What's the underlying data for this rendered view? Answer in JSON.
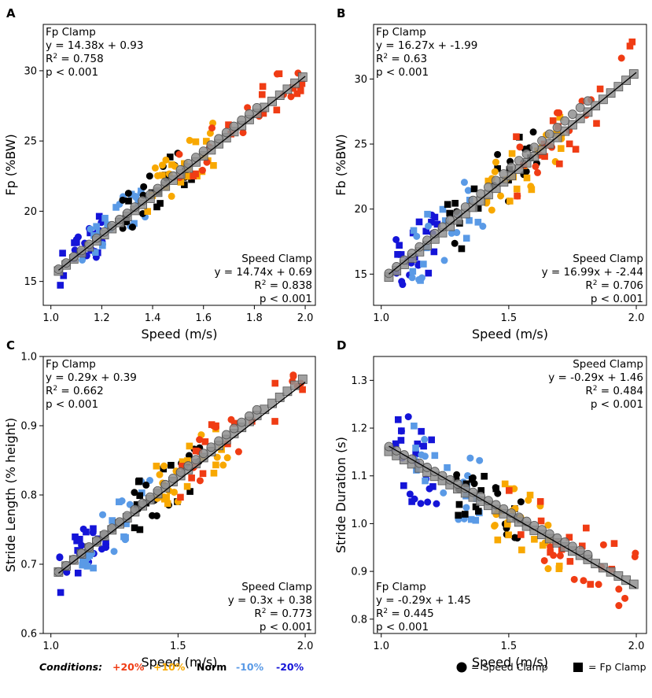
{
  "colors": {
    "+20%": "#f03c14",
    "+10%": "#f8a800",
    "Norm": "#000000",
    "-10%": "#5a9ae6",
    "-20%": "#1414d8",
    "fit_marker": "#909090"
  },
  "legend": {
    "conditions_title": "Conditions:",
    "conditions": [
      {
        "label": "+20%",
        "color_key": "+20%"
      },
      {
        "label": "+10%",
        "color_key": "+10%"
      },
      {
        "label": "Norm",
        "color_key": "Norm"
      },
      {
        "label": "-10%",
        "color_key": "-10%"
      },
      {
        "label": "-20%",
        "color_key": "-20%"
      }
    ],
    "speed_clamp_label": "= Speed Clamp",
    "fp_clamp_label": "= Fp Clamp"
  },
  "chart_data": [
    {
      "panel": "A",
      "type": "scatter",
      "xlabel": "Speed (m/s)",
      "ylabel": "Fp (%BW)",
      "xlim": [
        0.97,
        2.04
      ],
      "ylim": [
        13.3,
        33.3
      ],
      "xticks": [
        1.0,
        1.2,
        1.4,
        1.6,
        1.8,
        2.0
      ],
      "xtick_labels": [
        "1.0",
        "1.2",
        "1.4",
        "1.6",
        "1.8",
        "2.0"
      ],
      "yticks": [
        15,
        20,
        25,
        30
      ],
      "ytick_labels": [
        "15",
        "20",
        "25",
        "30"
      ],
      "fit_line": {
        "x": [
          1.03,
          2.0
        ],
        "y": [
          15.8,
          29.6
        ]
      },
      "gray_circles": {
        "x_start": 1.03,
        "x_end": 1.82,
        "step": 0.03,
        "slope": 14.74,
        "intercept": 0.69
      },
      "gray_squares": {
        "x_start": 1.03,
        "x_end": 2.0,
        "step": 0.03,
        "slope": 14.38,
        "intercept": 0.93
      },
      "annotation_fp": {
        "lines": [
          "Fp Clamp",
          "y = 14.38x + 0.93",
          "R",
          "p < 0.001"
        ],
        "r2": "2",
        "r2_value": " = 0.758",
        "position": "top-left"
      },
      "annotation_speed": {
        "lines": [
          "Speed Clamp",
          "y = 14.74x + 0.69",
          "R",
          "p < 0.001"
        ],
        "r2": "2",
        "r2_value": " = 0.838",
        "position": "bottom-right"
      },
      "scatter_groups": [
        {
          "cond": "-20%",
          "x_range": [
            1.03,
            1.22
          ],
          "slope": 14.6,
          "intercept": 0.9,
          "spread": 1.5,
          "n": 24,
          "seed": 11
        },
        {
          "cond": "-10%",
          "x_range": [
            1.12,
            1.38
          ],
          "slope": 14.6,
          "intercept": 0.9,
          "spread": 1.4,
          "n": 24,
          "seed": 12
        },
        {
          "cond": "Norm",
          "x_range": [
            1.28,
            1.56
          ],
          "slope": 14.6,
          "intercept": 0.9,
          "spread": 1.6,
          "n": 26,
          "seed": 13
        },
        {
          "cond": "+10%",
          "x_range": [
            1.38,
            1.64
          ],
          "slope": 14.6,
          "intercept": 0.9,
          "spread": 1.6,
          "n": 26,
          "seed": 14
        },
        {
          "cond": "+20%",
          "x_range": [
            1.5,
            2.0
          ],
          "slope": 14.6,
          "intercept": 0.9,
          "spread": 1.3,
          "n": 28,
          "seed": 15
        }
      ]
    },
    {
      "panel": "B",
      "type": "scatter",
      "xlabel": "Speed (m/s)",
      "ylabel": "Fb (%BW)",
      "xlim": [
        0.97,
        2.04
      ],
      "ylim": [
        12.6,
        34.2
      ],
      "xticks": [
        1.0,
        1.5,
        2.0
      ],
      "xtick_labels": [
        "1.0",
        "1.5",
        "2.0"
      ],
      "yticks": [
        15,
        20,
        25,
        30
      ],
      "ytick_labels": [
        "15",
        "20",
        "25",
        "30"
      ],
      "fit_line": {
        "x": [
          1.03,
          2.0
        ],
        "y": [
          15.0,
          30.5
        ]
      },
      "gray_circles": {
        "x_start": 1.03,
        "x_end": 1.82,
        "step": 0.03,
        "slope": 16.99,
        "intercept": -2.44
      },
      "gray_squares": {
        "x_start": 1.03,
        "x_end": 2.0,
        "step": 0.03,
        "slope": 16.27,
        "intercept": -1.99
      },
      "annotation_fp": {
        "lines": [
          "Fp Clamp",
          "y = 16.27x + -1.99",
          "R",
          "p < 0.001"
        ],
        "r2": "2",
        "r2_value": " = 0.63",
        "position": "top-left"
      },
      "annotation_speed": {
        "lines": [
          "Speed Clamp",
          "y = 16.99x + -2.44",
          "R",
          "p < 0.001"
        ],
        "r2": "2",
        "r2_value": " = 0.706",
        "position": "bottom-right"
      },
      "scatter_groups": [
        {
          "cond": "-20%",
          "x_range": [
            1.03,
            1.22
          ],
          "slope": 16.5,
          "intercept": -2.2,
          "spread": 2.4,
          "n": 24,
          "seed": 21
        },
        {
          "cond": "-10%",
          "x_range": [
            1.12,
            1.4
          ],
          "slope": 16.5,
          "intercept": -2.2,
          "spread": 2.4,
          "n": 24,
          "seed": 22
        },
        {
          "cond": "Norm",
          "x_range": [
            1.25,
            1.62
          ],
          "slope": 16.5,
          "intercept": -2.2,
          "spread": 2.6,
          "n": 26,
          "seed": 23
        },
        {
          "cond": "+10%",
          "x_range": [
            1.4,
            1.72
          ],
          "slope": 16.5,
          "intercept": -2.2,
          "spread": 2.6,
          "n": 26,
          "seed": 24
        },
        {
          "cond": "+20%",
          "x_range": [
            1.5,
            2.0
          ],
          "slope": 16.5,
          "intercept": -2.2,
          "spread": 2.6,
          "n": 28,
          "seed": 25
        }
      ]
    },
    {
      "panel": "C",
      "type": "scatter",
      "xlabel": "Speed (m/s)",
      "ylabel": "Stride Length (% height)",
      "xlim": [
        0.97,
        2.04
      ],
      "ylim": [
        0.6,
        1.0
      ],
      "xticks": [
        1.0,
        1.5,
        2.0
      ],
      "xtick_labels": [
        "1.0",
        "1.5",
        "2.0"
      ],
      "yticks": [
        0.6,
        0.7,
        0.8,
        0.9,
        1.0
      ],
      "ytick_labels": [
        "0.6",
        "0.7",
        "0.8",
        "0.9",
        "1.0"
      ],
      "fit_line": {
        "x": [
          1.03,
          2.0
        ],
        "y": [
          0.687,
          0.963
        ]
      },
      "gray_circles": {
        "x_start": 1.03,
        "x_end": 1.82,
        "step": 0.03,
        "slope": 0.3,
        "intercept": 0.38
      },
      "gray_squares": {
        "x_start": 1.03,
        "x_end": 2.0,
        "step": 0.03,
        "slope": 0.29,
        "intercept": 0.39
      },
      "annotation_fp": {
        "lines": [
          "Fp Clamp",
          "y = 0.29x + 0.39",
          "R",
          "p < 0.001"
        ],
        "r2": "2",
        "r2_value": " = 0.662",
        "position": "top-left"
      },
      "annotation_speed": {
        "lines": [
          "Speed Clamp",
          "y = 0.3x + 0.38",
          "R",
          "p < 0.001"
        ],
        "r2": "2",
        "r2_value": " = 0.773",
        "position": "bottom-right"
      },
      "scatter_groups": [
        {
          "cond": "-20%",
          "x_range": [
            1.03,
            1.22
          ],
          "slope": 0.295,
          "intercept": 0.385,
          "spread": 0.035,
          "n": 24,
          "seed": 31
        },
        {
          "cond": "-10%",
          "x_range": [
            1.12,
            1.4
          ],
          "slope": 0.295,
          "intercept": 0.385,
          "spread": 0.035,
          "n": 24,
          "seed": 32
        },
        {
          "cond": "Norm",
          "x_range": [
            1.28,
            1.6
          ],
          "slope": 0.295,
          "intercept": 0.385,
          "spread": 0.04,
          "n": 26,
          "seed": 33
        },
        {
          "cond": "+10%",
          "x_range": [
            1.4,
            1.7
          ],
          "slope": 0.295,
          "intercept": 0.385,
          "spread": 0.04,
          "n": 26,
          "seed": 34
        },
        {
          "cond": "+20%",
          "x_range": [
            1.5,
            2.0
          ],
          "slope": 0.295,
          "intercept": 0.385,
          "spread": 0.04,
          "n": 28,
          "seed": 35
        }
      ]
    },
    {
      "panel": "D",
      "type": "scatter",
      "xlabel": "Speed (m/s)",
      "ylabel": "Stride Duration (s)",
      "xlim": [
        0.97,
        2.04
      ],
      "ylim": [
        0.77,
        1.35
      ],
      "xticks": [
        1.0,
        1.5,
        2.0
      ],
      "xtick_labels": [
        "1.0",
        "1.5",
        "2.0"
      ],
      "yticks": [
        0.8,
        0.9,
        1.0,
        1.1,
        1.2,
        1.3
      ],
      "ytick_labels": [
        "0.8",
        "0.9",
        "1.0",
        "1.1",
        "1.2",
        "1.3"
      ],
      "fit_line": {
        "x": [
          1.03,
          2.0
        ],
        "y": [
          1.162,
          0.865
        ]
      },
      "gray_circles": {
        "x_start": 1.03,
        "x_end": 1.82,
        "step": 0.03,
        "slope": -0.29,
        "intercept": 1.46
      },
      "gray_squares": {
        "x_start": 1.03,
        "x_end": 2.0,
        "step": 0.03,
        "slope": -0.29,
        "intercept": 1.45
      },
      "annotation_fp": {
        "lines": [
          "Fp Clamp",
          "y = -0.29x + 1.45",
          "R",
          "p < 0.001"
        ],
        "r2": "2",
        "r2_value": " = 0.445",
        "position": "bottom-left"
      },
      "annotation_speed": {
        "lines": [
          "Speed Clamp",
          "y = -0.29x + 1.46",
          "R",
          "p < 0.001"
        ],
        "r2": "2",
        "r2_value": " = 0.484",
        "position": "top-right"
      },
      "scatter_groups": [
        {
          "cond": "-20%",
          "x_range": [
            1.03,
            1.22
          ],
          "slope": -0.29,
          "intercept": 1.455,
          "spread": 0.09,
          "n": 24,
          "seed": 41
        },
        {
          "cond": "-10%",
          "x_range": [
            1.12,
            1.4
          ],
          "slope": -0.29,
          "intercept": 1.455,
          "spread": 0.08,
          "n": 24,
          "seed": 42
        },
        {
          "cond": "Norm",
          "x_range": [
            1.28,
            1.55
          ],
          "slope": -0.29,
          "intercept": 1.455,
          "spread": 0.06,
          "n": 26,
          "seed": 43
        },
        {
          "cond": "+10%",
          "x_range": [
            1.4,
            1.7
          ],
          "slope": -0.29,
          "intercept": 1.455,
          "spread": 0.07,
          "n": 26,
          "seed": 44
        },
        {
          "cond": "+20%",
          "x_range": [
            1.5,
            2.0
          ],
          "slope": -0.29,
          "intercept": 1.455,
          "spread": 0.07,
          "n": 28,
          "seed": 45
        }
      ]
    }
  ]
}
